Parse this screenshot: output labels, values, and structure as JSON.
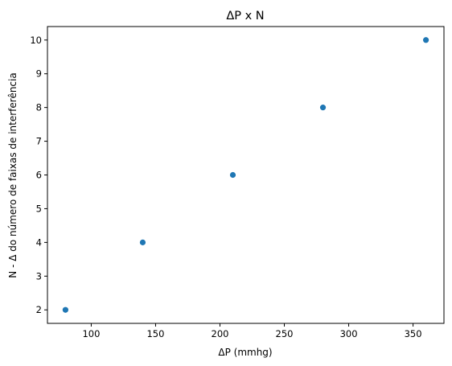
{
  "chart_data": {
    "type": "scatter",
    "title": "ΔP x N",
    "xlabel": "ΔP (mmhg)",
    "ylabel": "N - Δ do número de faixas de interferência",
    "x": [
      80,
      140,
      210,
      280,
      360
    ],
    "y": [
      2,
      4,
      6,
      8,
      10
    ],
    "xlim": [
      66,
      374
    ],
    "ylim": [
      1.6,
      10.4
    ],
    "xticks": [
      100,
      150,
      200,
      250,
      300,
      350
    ],
    "yticks": [
      2,
      3,
      4,
      5,
      6,
      7,
      8,
      9,
      10
    ],
    "marker_color": "#1f77b4",
    "grid": false
  }
}
